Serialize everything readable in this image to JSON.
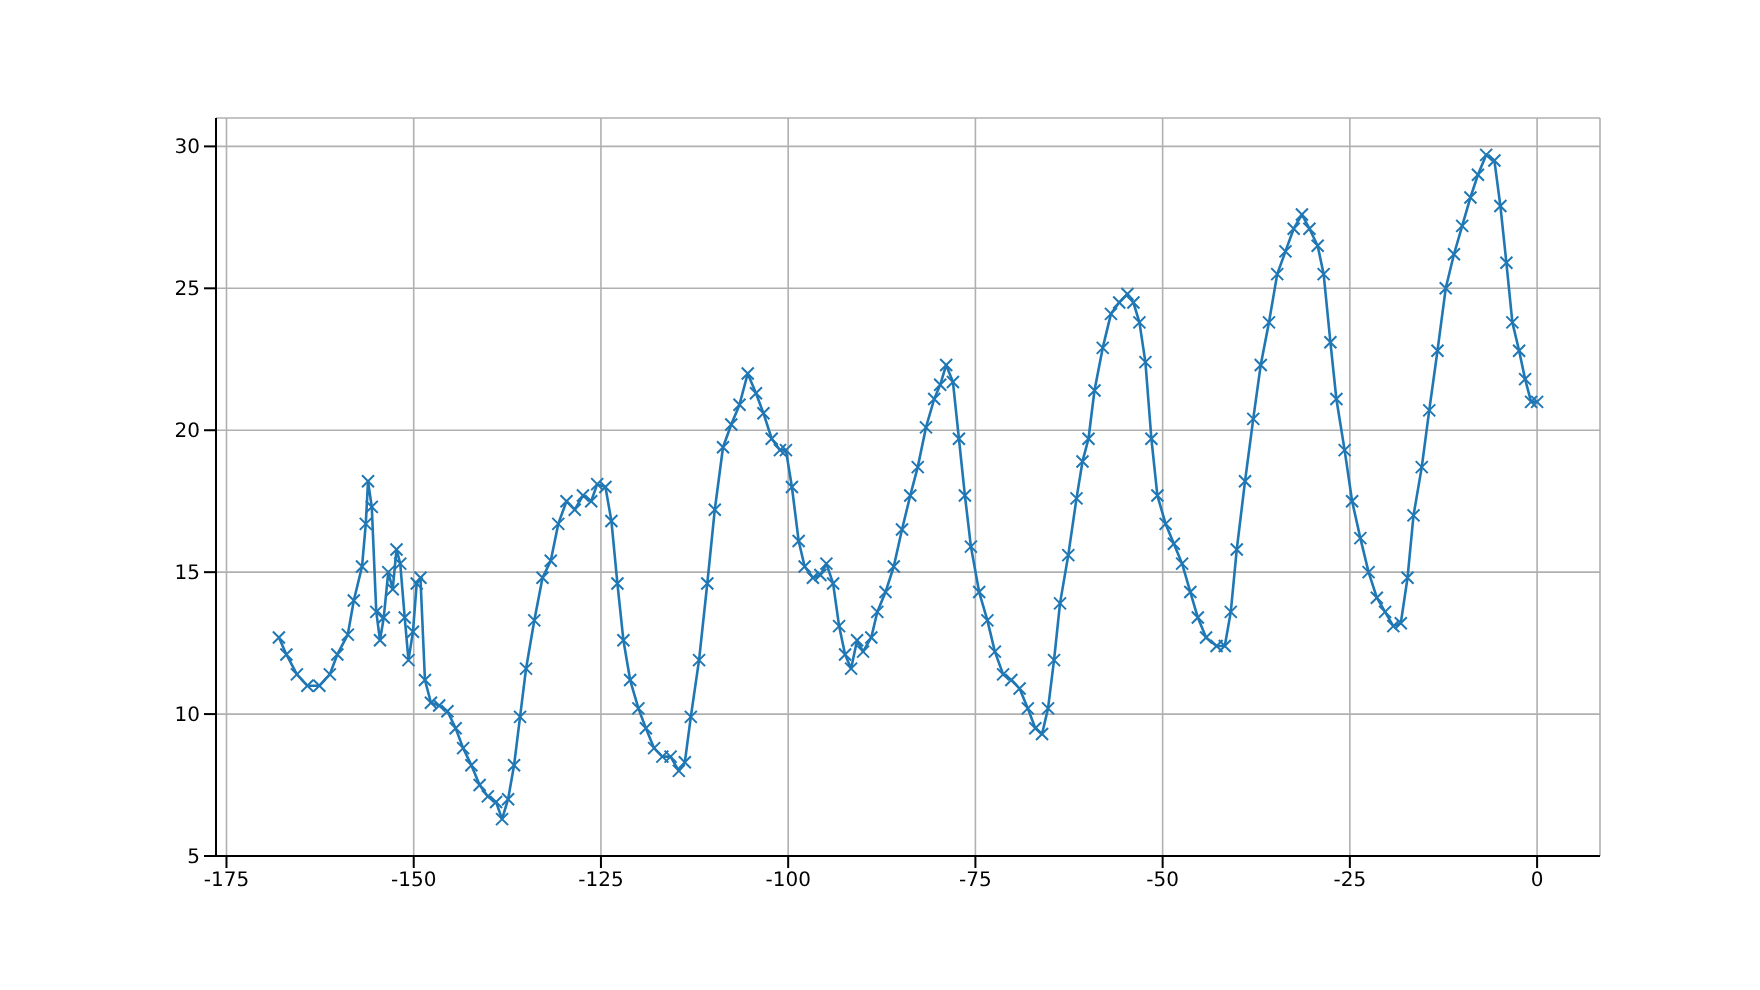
{
  "chart_data": {
    "type": "line",
    "xlim": [
      -176.4,
      8.4
    ],
    "ylim": [
      5,
      31
    ],
    "xticks": [
      -175,
      -150,
      -125,
      -100,
      -75,
      -50,
      -25,
      0
    ],
    "yticks": [
      5,
      10,
      15,
      20,
      25,
      30
    ],
    "grid": true,
    "marker": "cross",
    "line_style": "solid",
    "x": [
      -168,
      -167,
      -165.6,
      -164.2,
      -162.6,
      -161.2,
      -160.2,
      -158.8,
      -158,
      -156.9,
      -156.4,
      -156.1,
      -155.6,
      -155,
      -154.5,
      -154,
      -153.4,
      -152.8,
      -152.3,
      -151.8,
      -151.2,
      -150.7,
      -150.1,
      -149.6,
      -149.1,
      -148.5,
      -147.7,
      -146.6,
      -145.5,
      -144.4,
      -143.4,
      -142.3,
      -141.2,
      -140.1,
      -139,
      -138.2,
      -137.4,
      -136.6,
      -135.8,
      -135,
      -133.9,
      -132.8,
      -131.7,
      -130.7,
      -129.6,
      -128.5,
      -127.4,
      -126.3,
      -125.5,
      -124.4,
      -123.6,
      -122.8,
      -122,
      -121.1,
      -120,
      -119,
      -117.9,
      -116.8,
      -115.7,
      -114.6,
      -113.8,
      -113,
      -111.9,
      -110.8,
      -109.8,
      -108.7,
      -107.6,
      -106.5,
      -105.4,
      -104.3,
      -103.3,
      -102.2,
      -101.1,
      -100.3,
      -99.5,
      -98.6,
      -97.8,
      -96.7,
      -95.7,
      -94.9,
      -94,
      -93.2,
      -92.4,
      -91.6,
      -90.8,
      -90,
      -88.9,
      -88.1,
      -87,
      -85.9,
      -84.8,
      -83.7,
      -82.7,
      -81.6,
      -80.5,
      -79.7,
      -78.9,
      -78,
      -77.2,
      -76.4,
      -75.6,
      -74.5,
      -73.4,
      -72.4,
      -71.3,
      -70.2,
      -69.1,
      -68,
      -67,
      -66.1,
      -65.3,
      -64.5,
      -63.7,
      -62.6,
      -61.5,
      -60.7,
      -59.9,
      -59.1,
      -58,
      -56.9,
      -55.8,
      -54.7,
      -53.9,
      -53.1,
      -52.3,
      -51.5,
      -50.7,
      -49.6,
      -48.5,
      -47.4,
      -46.3,
      -45.3,
      -44.2,
      -42.8,
      -41.7,
      -40.9,
      -40.1,
      -39,
      -37.9,
      -36.9,
      -35.8,
      -34.7,
      -33.6,
      -32.5,
      -31.4,
      -30.4,
      -29.3,
      -28.5,
      -27.6,
      -26.8,
      -25.7,
      -24.7,
      -23.6,
      -22.5,
      -21.4,
      -20.3,
      -19.2,
      -18.2,
      -17.3,
      -16.5,
      -15.4,
      -14.4,
      -13.3,
      -12.2,
      -11.1,
      -10,
      -8.9,
      -7.9,
      -6.8,
      -5.7,
      -4.9,
      -4.1,
      -3.3,
      -2.4,
      -1.6,
      -0.8,
      0
    ],
    "series": [
      {
        "color": "#1f77b4",
        "values": [
          12.7,
          12.1,
          11.4,
          11.0,
          11.0,
          11.4,
          12.1,
          12.8,
          14.0,
          15.2,
          16.7,
          18.2,
          17.3,
          13.6,
          12.6,
          13.4,
          15.0,
          14.4,
          15.8,
          15.3,
          13.4,
          11.9,
          12.9,
          14.6,
          14.8,
          11.2,
          10.4,
          10.3,
          10.1,
          9.5,
          8.8,
          8.2,
          7.5,
          7.1,
          6.9,
          6.3,
          7.0,
          8.2,
          9.9,
          11.6,
          13.3,
          14.8,
          15.4,
          16.7,
          17.5,
          17.2,
          17.7,
          17.5,
          18.1,
          18.0,
          16.8,
          14.6,
          12.6,
          11.2,
          10.2,
          9.5,
          8.8,
          8.5,
          8.5,
          8.0,
          8.3,
          9.9,
          11.9,
          14.6,
          17.2,
          19.4,
          20.2,
          20.9,
          22.0,
          21.3,
          20.6,
          19.7,
          19.3,
          19.3,
          18.0,
          16.1,
          15.2,
          14.8,
          14.9,
          15.3,
          14.6,
          13.1,
          12.1,
          11.6,
          12.6,
          12.2,
          12.7,
          13.6,
          14.3,
          15.2,
          16.5,
          17.7,
          18.7,
          20.1,
          21.1,
          21.6,
          22.3,
          21.7,
          19.7,
          17.7,
          15.9,
          14.3,
          13.3,
          12.2,
          11.4,
          11.2,
          10.9,
          10.2,
          9.5,
          9.3,
          10.2,
          11.9,
          13.9,
          15.6,
          17.6,
          18.9,
          19.7,
          21.4,
          22.9,
          24.1,
          24.5,
          24.8,
          24.5,
          23.8,
          22.4,
          19.7,
          17.7,
          16.7,
          16.0,
          15.3,
          14.3,
          13.4,
          12.7,
          12.4,
          12.4,
          13.6,
          15.8,
          18.2,
          20.4,
          22.3,
          23.8,
          25.5,
          26.3,
          27.1,
          27.6,
          27.1,
          26.5,
          25.5,
          23.1,
          21.1,
          19.3,
          17.5,
          16.2,
          15.0,
          14.1,
          13.6,
          13.1,
          13.2,
          14.8,
          17.0,
          18.7,
          20.7,
          22.8,
          25.0,
          26.2,
          27.2,
          28.2,
          29.0,
          29.7,
          29.5,
          27.9,
          25.9,
          23.8,
          22.8,
          21.8,
          21.0,
          21.0
        ]
      }
    ]
  }
}
